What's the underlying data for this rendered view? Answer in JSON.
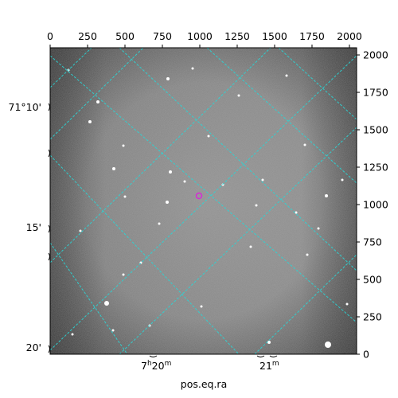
{
  "figure": {
    "xlabel": "pos.eq.ra",
    "top_ticks": [
      "0",
      "250",
      "500",
      "750",
      "1000",
      "1250",
      "1500",
      "1750",
      "2000"
    ],
    "right_ticks": [
      "0",
      "250",
      "500",
      "750",
      "1000",
      "1250",
      "1500",
      "1750",
      "2000"
    ],
    "dec_labels": [
      "71°10'",
      "15'",
      "20'"
    ],
    "ra_labels": [
      {
        "hours": "7",
        "sup_h": "h",
        "minutes": "20",
        "sup_m": "m"
      },
      {
        "minutes": "21",
        "sup_m": "m"
      }
    ],
    "colors": {
      "grid": "#2ad6d6",
      "marker": "#d62ad6",
      "background_sky": "#8a8a8a",
      "frame": "#000000"
    },
    "pixel_range": [
      0,
      2048
    ]
  }
}
